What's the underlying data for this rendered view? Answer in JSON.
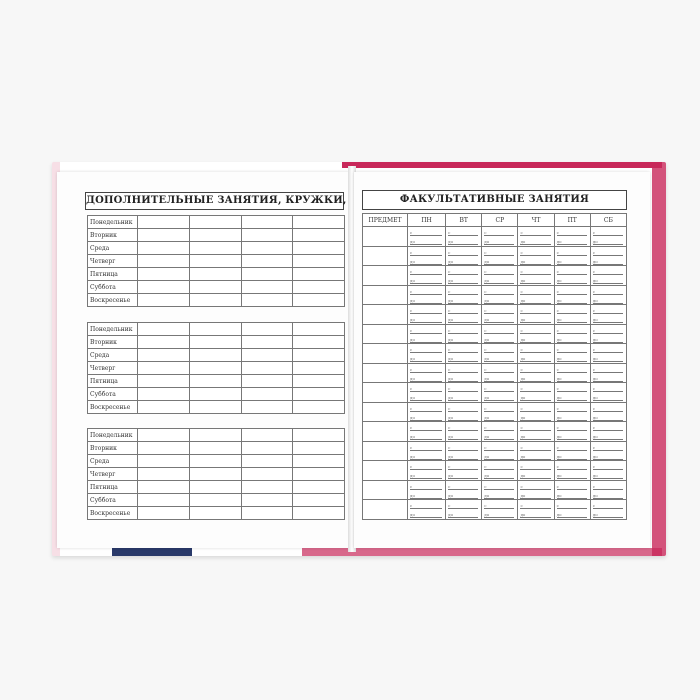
{
  "left_page": {
    "title": "ДОПОЛНИТЕЛЬНЫЕ ЗАНЯТИЯ, КРУЖКИ, КУРСЫ",
    "days": [
      "Понедельник",
      "Вторник",
      "Среда",
      "Четверг",
      "Пятница",
      "Суббота",
      "Воскресенье"
    ],
    "table_count": 3
  },
  "right_page": {
    "title": "ФАКУЛЬТАТИВНЫЕ ЗАНЯТИЯ",
    "headers": [
      "ПРЕДМЕТ",
      "ПН",
      "ВТ",
      "СР",
      "ЧТ",
      "ПТ",
      "СБ"
    ],
    "from_label": "с",
    "to_label": "до"
  },
  "colors": {
    "cover_accent": "#c8285a"
  }
}
